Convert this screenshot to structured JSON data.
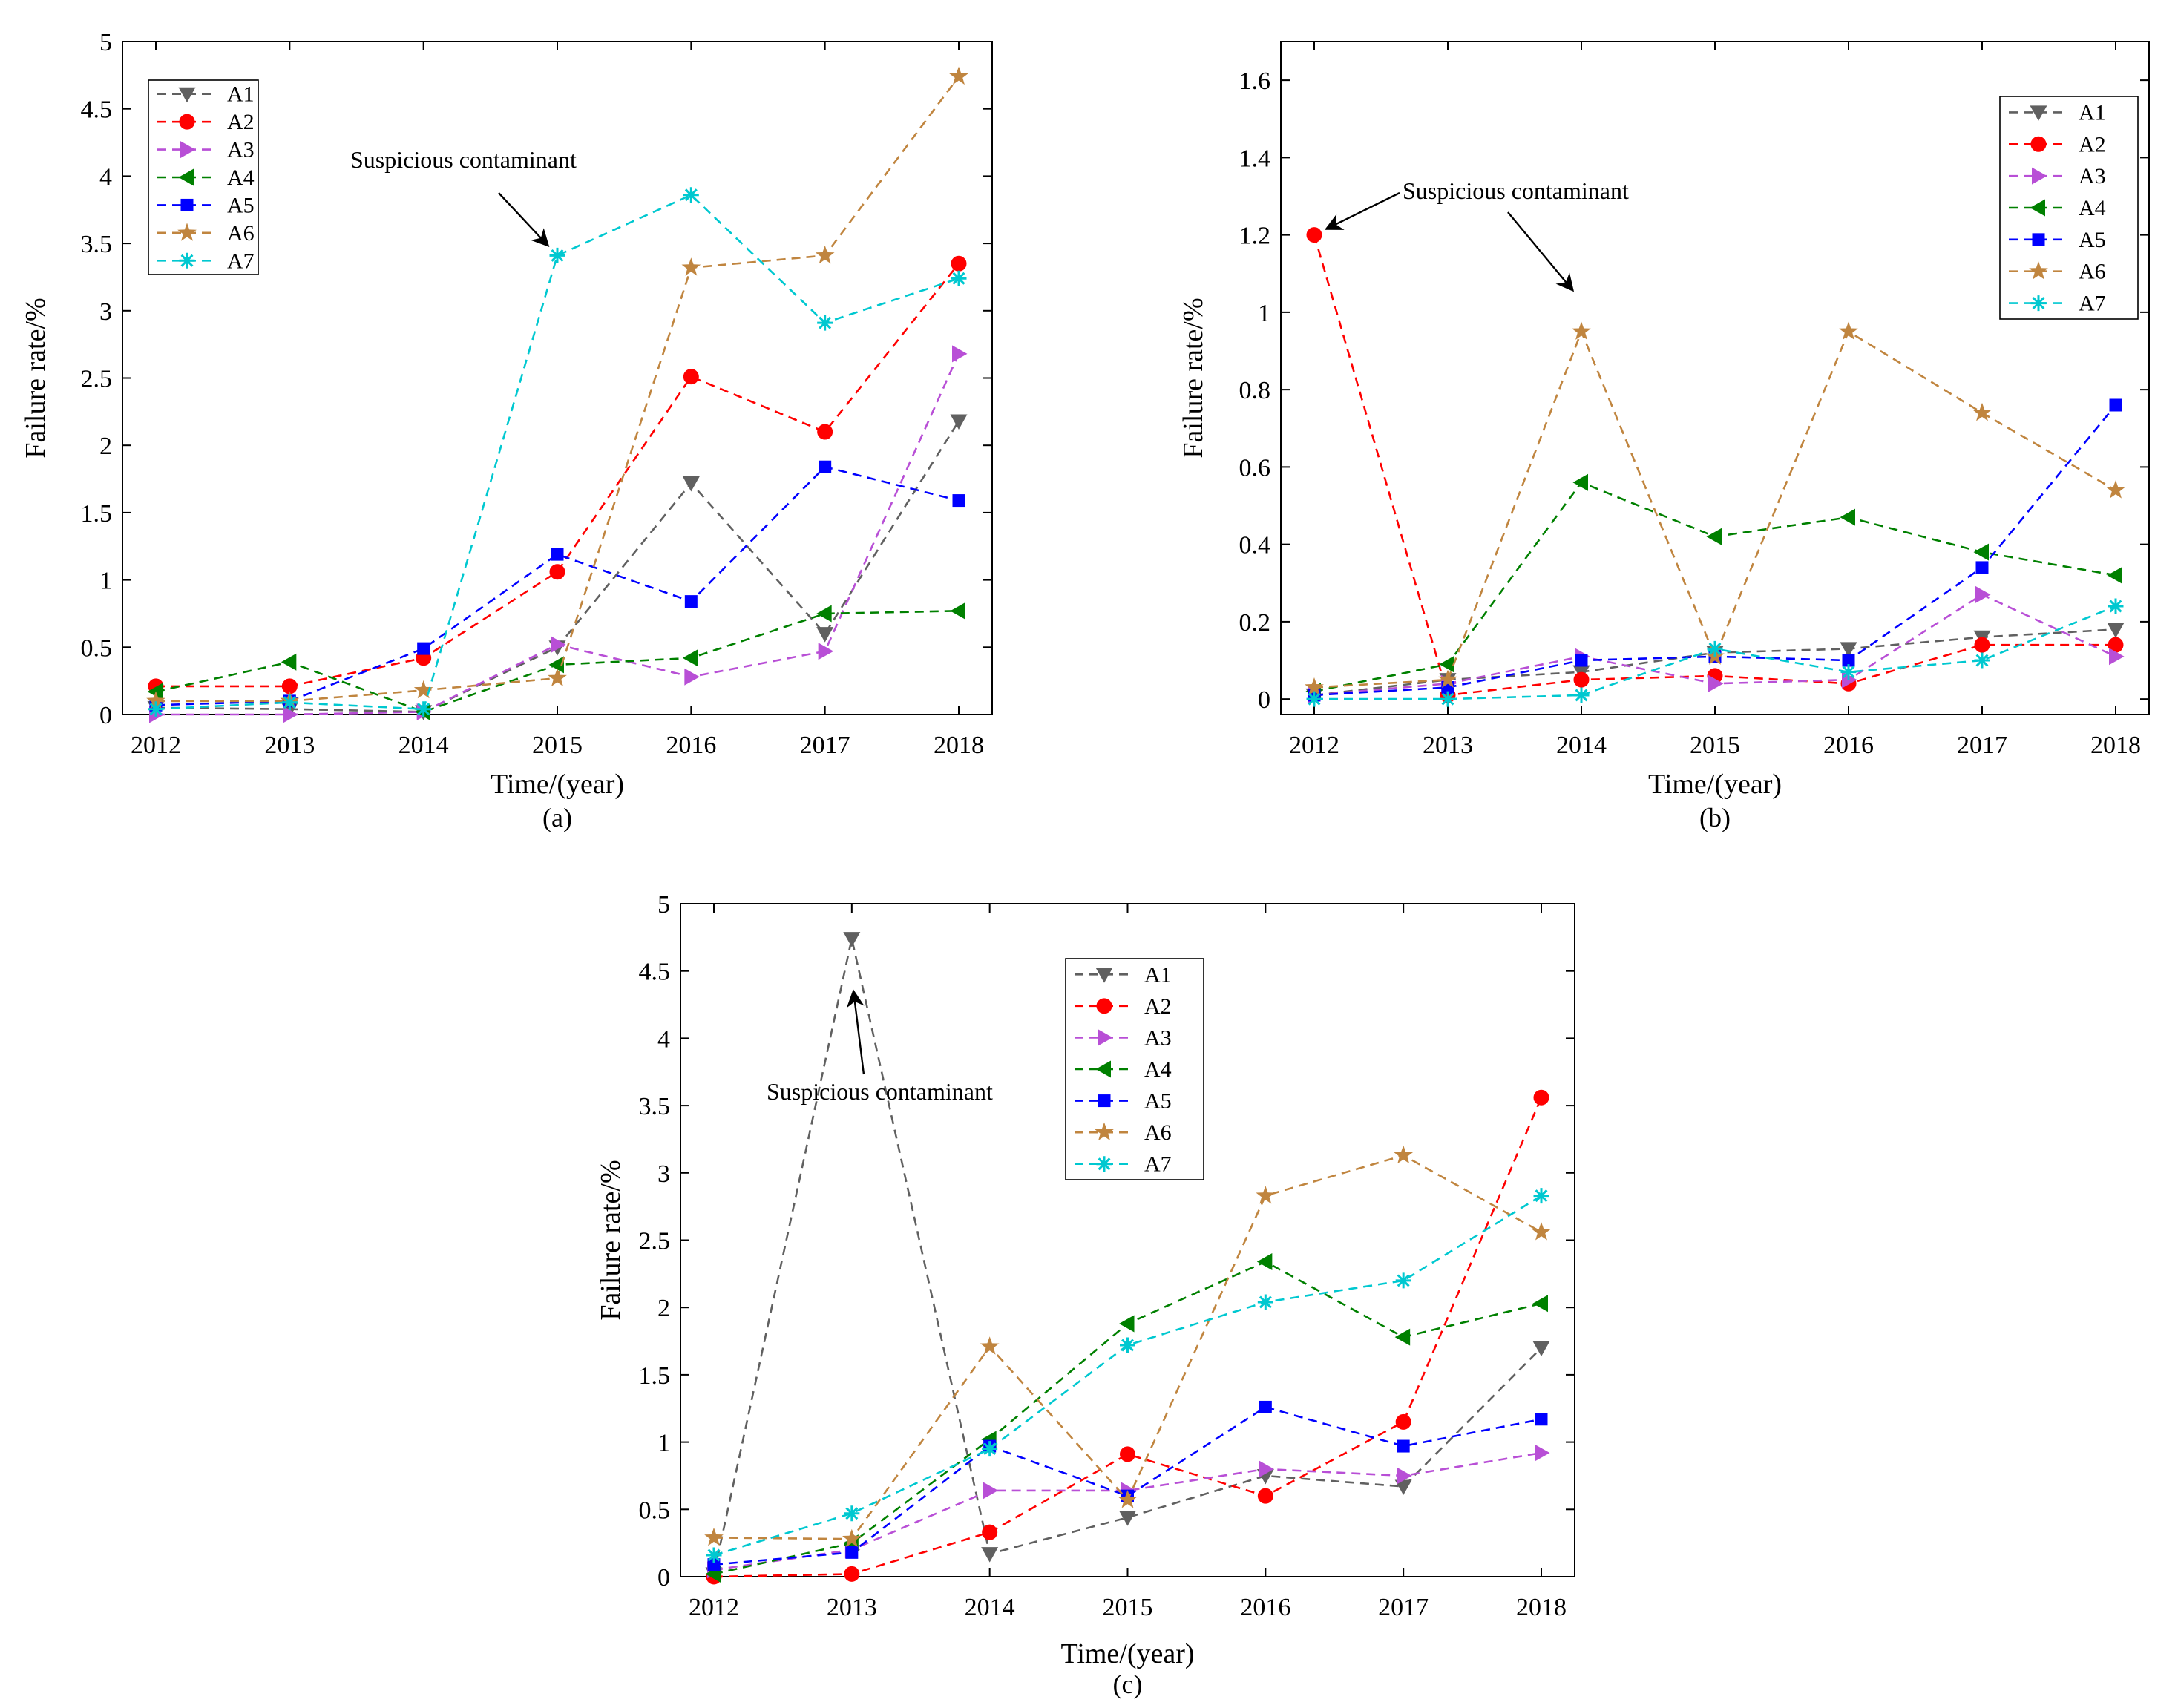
{
  "chart_data": [
    {
      "id": "a",
      "type": "line",
      "caption": "(a)",
      "xlabel": "Time/(year)",
      "ylabel": "Failure rate/%",
      "categories": [
        "2012",
        "2013",
        "2014",
        "2015",
        "2016",
        "2017",
        "2018"
      ],
      "ylim": [
        0,
        5
      ],
      "yticks": [
        0,
        0.5,
        1,
        1.5,
        2,
        2.5,
        3,
        3.5,
        4,
        4.5,
        5
      ],
      "ytick_labels": [
        "0",
        "0.5",
        "1",
        "1.5",
        "2",
        "2.5",
        "3",
        "3.5",
        "4",
        "4.5",
        "5"
      ],
      "legend": "top-left",
      "grid": false,
      "series": [
        {
          "name": "A1",
          "color": "#606060",
          "marker": "triangle-down",
          "values": [
            0.05,
            0.04,
            0.02,
            0.5,
            1.72,
            0.6,
            2.18
          ]
        },
        {
          "name": "A2",
          "color": "#ff0000",
          "marker": "circle",
          "values": [
            0.21,
            0.21,
            0.42,
            1.06,
            2.51,
            2.1,
            3.35
          ]
        },
        {
          "name": "A3",
          "color": "#b84fd6",
          "marker": "triangle-right",
          "values": [
            0.0,
            0.0,
            0.02,
            0.52,
            0.28,
            0.47,
            2.68
          ]
        },
        {
          "name": "A4",
          "color": "#008000",
          "marker": "triangle-left",
          "values": [
            0.17,
            0.39,
            0.02,
            0.37,
            0.42,
            0.75,
            0.77
          ]
        },
        {
          "name": "A5",
          "color": "#0000ff",
          "marker": "square",
          "values": [
            0.07,
            0.1,
            0.49,
            1.19,
            0.84,
            1.84,
            1.59
          ]
        },
        {
          "name": "A6",
          "color": "#c0853f",
          "marker": "star",
          "values": [
            0.1,
            0.1,
            0.18,
            0.27,
            3.32,
            3.41,
            4.74
          ]
        },
        {
          "name": "A7",
          "color": "#00c8d0",
          "marker": "asterisk",
          "values": [
            0.04,
            0.09,
            0.04,
            3.41,
            3.86,
            2.91,
            3.24
          ]
        }
      ],
      "annotations": [
        {
          "text": "Suspicious contaminant",
          "target": {
            "x": "2015",
            "y": 3.41
          }
        }
      ]
    },
    {
      "id": "b",
      "type": "line",
      "caption": "(b)",
      "xlabel": "Time/(year)",
      "ylabel": "Failure rate/%",
      "categories": [
        "2012",
        "2013",
        "2014",
        "2015",
        "2016",
        "2017",
        "2018"
      ],
      "ylim": [
        -0.04,
        1.7
      ],
      "yticks": [
        0,
        0.2,
        0.4,
        0.6,
        0.8,
        1,
        1.2,
        1.4,
        1.6
      ],
      "ytick_labels": [
        "0",
        "0.2",
        "0.4",
        "0.6",
        "0.8",
        "1",
        "1.2",
        "1.4",
        "1.6"
      ],
      "legend": "top-right",
      "grid": false,
      "series": [
        {
          "name": "A1",
          "color": "#606060",
          "marker": "triangle-down",
          "values": [
            0.01,
            0.05,
            0.07,
            0.12,
            0.13,
            0.16,
            0.18
          ]
        },
        {
          "name": "A2",
          "color": "#ff0000",
          "marker": "circle",
          "values": [
            1.2,
            0.01,
            0.05,
            0.06,
            0.04,
            0.14,
            0.14
          ]
        },
        {
          "name": "A3",
          "color": "#b84fd6",
          "marker": "triangle-right",
          "values": [
            0.01,
            0.04,
            0.11,
            0.04,
            0.05,
            0.27,
            0.11
          ]
        },
        {
          "name": "A4",
          "color": "#008000",
          "marker": "triangle-left",
          "values": [
            0.02,
            0.09,
            0.56,
            0.42,
            0.47,
            0.38,
            0.32
          ]
        },
        {
          "name": "A5",
          "color": "#0000ff",
          "marker": "square",
          "values": [
            0.01,
            0.03,
            0.1,
            0.11,
            0.1,
            0.34,
            0.76
          ]
        },
        {
          "name": "A6",
          "color": "#c0853f",
          "marker": "star",
          "values": [
            0.03,
            0.05,
            0.95,
            0.11,
            0.95,
            0.74,
            0.54
          ]
        },
        {
          "name": "A7",
          "color": "#00c8d0",
          "marker": "asterisk",
          "values": [
            0.0,
            0.0,
            0.01,
            0.13,
            0.07,
            0.1,
            0.24
          ]
        }
      ],
      "annotations": [
        {
          "text": "Suspicious contaminant",
          "targets": [
            {
              "x": "2012",
              "y": 1.2
            },
            {
              "x": "2014",
              "y": 1.03
            }
          ]
        }
      ]
    },
    {
      "id": "c",
      "type": "line",
      "caption": "(c)",
      "xlabel": "Time/(year)",
      "ylabel": "Failure rate/%",
      "categories": [
        "2012",
        "2013",
        "2014",
        "2015",
        "2016",
        "2017",
        "2018"
      ],
      "ylim": [
        0,
        5
      ],
      "yticks": [
        0,
        0.5,
        1,
        1.5,
        2,
        2.5,
        3,
        3.5,
        4,
        4.5,
        5
      ],
      "ytick_labels": [
        "0",
        "0.5",
        "1",
        "1.5",
        "2",
        "2.5",
        "3",
        "3.5",
        "4",
        "4.5",
        "5"
      ],
      "legend": "top-center",
      "grid": false,
      "series": [
        {
          "name": "A1",
          "color": "#606060",
          "marker": "triangle-down",
          "values": [
            0.02,
            4.74,
            0.17,
            0.44,
            0.75,
            0.67,
            1.7
          ]
        },
        {
          "name": "A2",
          "color": "#ff0000",
          "marker": "circle",
          "values": [
            0.0,
            0.02,
            0.33,
            0.91,
            0.6,
            1.15,
            3.56
          ]
        },
        {
          "name": "A3",
          "color": "#b84fd6",
          "marker": "triangle-right",
          "values": [
            0.05,
            0.2,
            0.64,
            0.64,
            0.8,
            0.75,
            0.92
          ]
        },
        {
          "name": "A4",
          "color": "#008000",
          "marker": "triangle-left",
          "values": [
            0.02,
            0.25,
            1.02,
            1.88,
            2.34,
            1.78,
            2.03
          ]
        },
        {
          "name": "A5",
          "color": "#0000ff",
          "marker": "square",
          "values": [
            0.09,
            0.18,
            0.97,
            0.6,
            1.26,
            0.97,
            1.17
          ]
        },
        {
          "name": "A6",
          "color": "#c0853f",
          "marker": "star",
          "values": [
            0.29,
            0.28,
            1.71,
            0.57,
            2.83,
            3.13,
            2.56
          ]
        },
        {
          "name": "A7",
          "color": "#00c8d0",
          "marker": "asterisk",
          "values": [
            0.16,
            0.47,
            0.95,
            1.72,
            2.04,
            2.2,
            2.83
          ]
        }
      ],
      "annotations": [
        {
          "text": "Suspicious contaminant",
          "target": {
            "x": "2013",
            "y": 4.45
          }
        }
      ]
    }
  ]
}
